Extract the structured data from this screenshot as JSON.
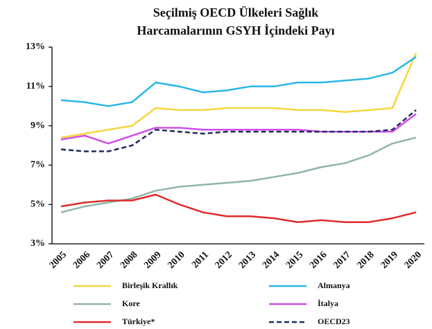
{
  "chart_data": {
    "type": "line",
    "title": [
      "Seçilmiş OECD  Ülkeleri Sağlık",
      "Harcamalarının  GSYH  İçindeki Payı"
    ],
    "categories": [
      "2005",
      "2006",
      "2007",
      "2008",
      "2009",
      "2010",
      "2011",
      "2012",
      "2013",
      "2014",
      "2015",
      "2016",
      "2017",
      "2018",
      "2019",
      "2020"
    ],
    "ylim": [
      3,
      13
    ],
    "yticks": [
      {
        "value": 3,
        "label": "3%"
      },
      {
        "value": 5,
        "label": "5%"
      },
      {
        "value": 7,
        "label": "7%"
      },
      {
        "value": 9,
        "label": "9%"
      },
      {
        "value": 11,
        "label": "11%"
      },
      {
        "value": 13,
        "label": "13%"
      }
    ],
    "grid": false,
    "legend": "bottom",
    "series": [
      {
        "name": "Birleşik Krallık",
        "color": "#f5d63a",
        "values": [
          8.4,
          8.6,
          8.8,
          9.0,
          9.9,
          9.8,
          9.8,
          9.9,
          9.9,
          9.9,
          9.8,
          9.8,
          9.7,
          9.8,
          9.9,
          12.7
        ]
      },
      {
        "name": "Almanya",
        "color": "#29b6e8",
        "values": [
          10.3,
          10.2,
          10.0,
          10.2,
          11.2,
          11.0,
          10.7,
          10.8,
          11.0,
          11.0,
          11.2,
          11.2,
          11.3,
          11.4,
          11.7,
          12.5
        ]
      },
      {
        "name": "Kore",
        "color": "#8fb5a6",
        "values": [
          4.6,
          4.9,
          5.1,
          5.3,
          5.7,
          5.9,
          6.0,
          6.1,
          6.2,
          6.4,
          6.6,
          6.9,
          7.1,
          7.5,
          8.1,
          8.4
        ]
      },
      {
        "name": "İtalya",
        "color": "#d04be8",
        "values": [
          8.3,
          8.5,
          8.1,
          8.5,
          8.9,
          8.9,
          8.8,
          8.8,
          8.8,
          8.8,
          8.8,
          8.7,
          8.7,
          8.7,
          8.7,
          9.6
        ]
      },
      {
        "name": "Türkiye*",
        "color": "#e02a2a",
        "values": [
          4.9,
          5.1,
          5.2,
          5.2,
          5.5,
          5.0,
          4.6,
          4.4,
          4.4,
          4.3,
          4.1,
          4.2,
          4.1,
          4.1,
          4.3,
          4.6
        ]
      },
      {
        "name": "OECD23",
        "color": "#1f2a5c",
        "dashed": true,
        "values": [
          7.8,
          7.7,
          7.7,
          8.0,
          8.8,
          8.7,
          8.6,
          8.7,
          8.7,
          8.7,
          8.7,
          8.7,
          8.7,
          8.7,
          8.8,
          9.8
        ]
      }
    ]
  }
}
